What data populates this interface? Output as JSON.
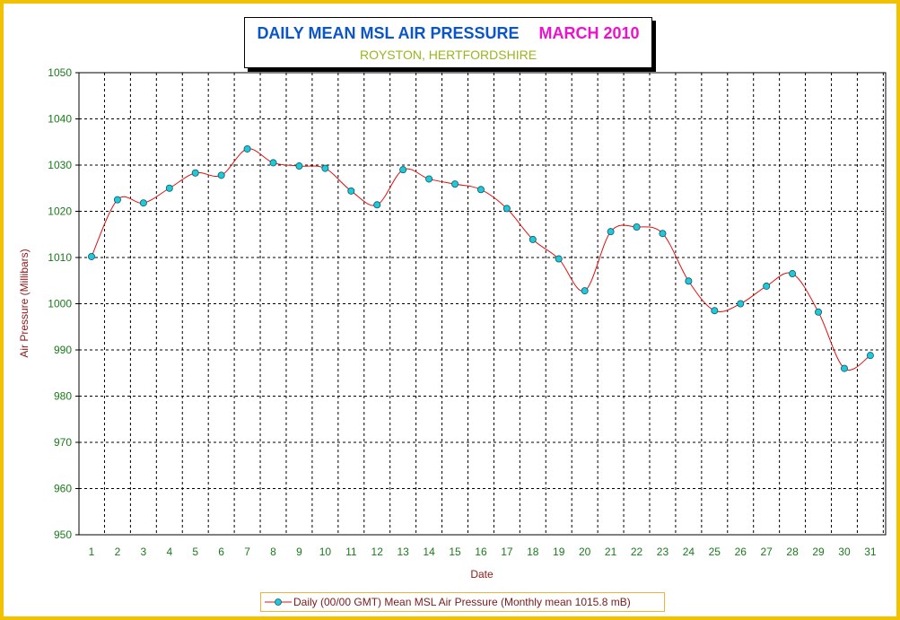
{
  "chart_data": {
    "type": "line",
    "title": "DAILY MEAN MSL AIR PRESSURE",
    "title_date": "MARCH 2010",
    "subtitle": "ROYSTON, HERTFORDSHIRE",
    "xlabel": "Date",
    "ylabel": "Air Pressure (Millibars)",
    "x": [
      1,
      2,
      3,
      4,
      5,
      6,
      7,
      8,
      9,
      10,
      11,
      12,
      13,
      14,
      15,
      16,
      17,
      18,
      19,
      20,
      21,
      22,
      23,
      24,
      25,
      26,
      27,
      28,
      29,
      30,
      31
    ],
    "series": [
      {
        "name": "Daily (00/00 GMT) Mean MSL Air Pressure (Monthly mean 1015.8 mB)",
        "values": [
          1010.2,
          1022.5,
          1021.8,
          1025.0,
          1028.3,
          1027.8,
          1033.5,
          1030.5,
          1029.8,
          1029.3,
          1024.4,
          1021.4,
          1029.0,
          1027.0,
          1025.9,
          1024.7,
          1020.6,
          1013.9,
          1009.7,
          1002.8,
          1015.6,
          1016.6,
          1015.2,
          1004.9,
          998.5,
          1000.0,
          1003.8,
          1006.5,
          998.2,
          986.0,
          988.8
        ]
      }
    ],
    "ylim": [
      950,
      1050
    ],
    "yticks": [
      950,
      960,
      970,
      980,
      990,
      1000,
      1010,
      1020,
      1030,
      1040,
      1050
    ],
    "grid": true,
    "legend_position": "bottom",
    "colors": {
      "line": "#e01010",
      "marker_fill": "#20c8d8",
      "marker_edge": "#0a5a6a",
      "tick_labels": "#1a7a1a",
      "axis_titles": "#8a1a1a",
      "title": "#0a55c8",
      "title_date": "#ee11cc",
      "subtitle": "#9ab520",
      "frame": "#f2c200",
      "legend_border": "#f0b23c"
    }
  }
}
